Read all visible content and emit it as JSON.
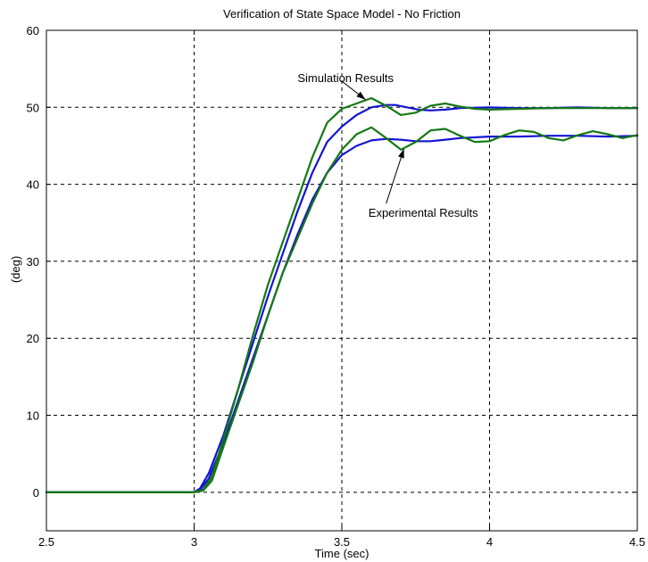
{
  "chart_data": {
    "type": "line",
    "title": "Verification of State Space Model - No Friction",
    "xlabel": "Time (sec)",
    "ylabel": "(deg)",
    "xlim": [
      2.5,
      4.5
    ],
    "ylim": [
      -5,
      60
    ],
    "xticks": [
      2.5,
      3,
      3.5,
      4,
      4.5
    ],
    "xtick_labels": [
      "2.5",
      "3",
      "3.5",
      "4",
      "4.5"
    ],
    "yticks": [
      0,
      10,
      20,
      30,
      40,
      50,
      60
    ],
    "ytick_labels": [
      "0",
      "10",
      "20",
      "30",
      "40",
      "50",
      "60"
    ],
    "grid": true,
    "colors": {
      "sim": "#1414d2",
      "exp": "#147814"
    },
    "series": [
      {
        "color_key": "sim",
        "x": [
          2.5,
          3.0,
          3.02,
          3.05,
          3.1,
          3.15,
          3.2,
          3.25,
          3.3,
          3.35,
          3.4,
          3.45,
          3.5,
          3.55,
          3.6,
          3.65,
          3.68,
          3.72,
          3.76,
          3.8,
          3.85,
          3.9,
          4.0,
          4.1,
          4.2,
          4.3,
          4.4,
          4.5
        ],
        "y": [
          0,
          0,
          0.5,
          2.5,
          7.5,
          13.5,
          19.5,
          25.5,
          31.0,
          36.5,
          41.5,
          45.5,
          47.5,
          49.0,
          50.0,
          50.3,
          50.3,
          50.0,
          49.7,
          49.6,
          49.7,
          49.9,
          50.0,
          49.9,
          49.9,
          50.0,
          49.9,
          49.9
        ]
      },
      {
        "color_key": "sim",
        "x": [
          2.5,
          3.0,
          3.02,
          3.05,
          3.1,
          3.15,
          3.2,
          3.25,
          3.3,
          3.35,
          3.4,
          3.45,
          3.5,
          3.55,
          3.6,
          3.65,
          3.7,
          3.75,
          3.8,
          3.85,
          3.9,
          4.0,
          4.1,
          4.2,
          4.3,
          4.4,
          4.5
        ],
        "y": [
          0,
          0,
          0.3,
          1.8,
          6.5,
          12.0,
          17.5,
          23.0,
          28.5,
          33.5,
          38.0,
          41.5,
          43.8,
          45.0,
          45.7,
          45.9,
          45.8,
          45.6,
          45.6,
          45.8,
          46.0,
          46.2,
          46.2,
          46.3,
          46.3,
          46.2,
          46.3
        ]
      },
      {
        "color_key": "exp",
        "x": [
          2.5,
          2.7,
          2.9,
          3.0,
          3.03,
          3.06,
          3.1,
          3.15,
          3.2,
          3.25,
          3.3,
          3.35,
          3.4,
          3.45,
          3.5,
          3.55,
          3.6,
          3.65,
          3.7,
          3.75,
          3.8,
          3.85,
          3.9,
          3.95,
          4.0,
          4.1,
          4.2,
          4.3,
          4.4,
          4.5
        ],
        "y": [
          0,
          0,
          0,
          0,
          0.3,
          2.0,
          7.0,
          13.5,
          20.5,
          27.0,
          32.5,
          38.0,
          43.5,
          48.0,
          49.8,
          50.5,
          51.2,
          50.2,
          49.0,
          49.3,
          50.2,
          50.5,
          50.1,
          49.8,
          49.7,
          49.8,
          49.9,
          49.9,
          49.9,
          49.9
        ]
      },
      {
        "color_key": "exp",
        "x": [
          2.5,
          2.7,
          2.9,
          3.0,
          3.03,
          3.06,
          3.1,
          3.15,
          3.2,
          3.25,
          3.3,
          3.35,
          3.4,
          3.45,
          3.5,
          3.55,
          3.6,
          3.65,
          3.7,
          3.75,
          3.8,
          3.85,
          3.9,
          3.95,
          4.0,
          4.05,
          4.1,
          4.15,
          4.2,
          4.25,
          4.3,
          4.35,
          4.4,
          4.45,
          4.5
        ],
        "y": [
          0,
          0,
          0,
          0,
          0.2,
          1.5,
          6.0,
          11.5,
          17.0,
          23.0,
          28.5,
          33.0,
          37.5,
          41.5,
          44.5,
          46.5,
          47.4,
          46.0,
          44.5,
          45.5,
          47.0,
          47.2,
          46.3,
          45.5,
          45.6,
          46.4,
          47.0,
          46.8,
          46.0,
          45.7,
          46.4,
          46.9,
          46.5,
          46.0,
          46.4
        ]
      }
    ],
    "annotations": [
      {
        "text": "Simulation Results",
        "text_x": 3.35,
        "text_y": 53.3,
        "arrow_from": [
          3.5,
          53.4
        ],
        "arrow_to": [
          3.58,
          51.0
        ]
      },
      {
        "text": "Experimental Results",
        "text_x": 3.59,
        "text_y": 35.8,
        "arrow_from": [
          3.65,
          37.5
        ],
        "arrow_to": [
          3.71,
          44.6
        ]
      }
    ]
  }
}
